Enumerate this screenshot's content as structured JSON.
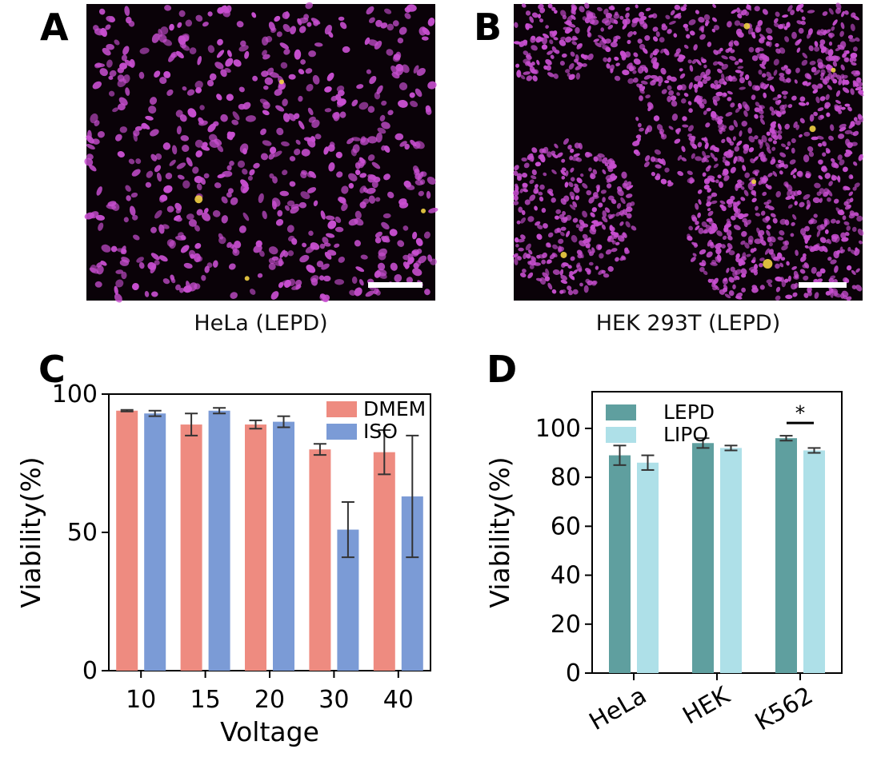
{
  "panel_a": {
    "letter": "A",
    "caption": "HeLa (LEPD)",
    "cell_color": "#c84fd0",
    "background_color": "#0a0208",
    "highlight_color": "#f2d245"
  },
  "panel_b": {
    "letter": "B",
    "caption": "HEK 293T (LEPD)",
    "cell_color": "#c84fd0",
    "background_color": "#0a0208",
    "highlight_color": "#f2d245"
  },
  "chart_data": [
    {
      "panel": "C",
      "type": "bar",
      "title": "",
      "xlabel": "Voltage",
      "ylabel": "Viability(%)",
      "categories": [
        "10",
        "15",
        "20",
        "30",
        "40"
      ],
      "ylim": [
        0,
        100
      ],
      "yticks": [
        "0",
        "50",
        "100"
      ],
      "legend": "top-right",
      "grid": false,
      "series": [
        {
          "name": "DMEM",
          "color": "#ee8b80",
          "values": [
            94,
            89,
            89,
            80,
            79
          ],
          "errors": [
            0.3,
            4,
            1.5,
            2,
            8
          ]
        },
        {
          "name": "ISO",
          "color": "#7b9bd6",
          "values": [
            93,
            94,
            90,
            51,
            63
          ],
          "errors": [
            1,
            1,
            2,
            10,
            22
          ]
        }
      ]
    },
    {
      "panel": "D",
      "type": "bar",
      "title": "",
      "xlabel": "",
      "ylabel": "Viability(%)",
      "categories": [
        "HeLa",
        "HEK",
        "K562"
      ],
      "ylim": [
        0,
        115
      ],
      "yticks": [
        "0",
        "20",
        "40",
        "60",
        "80",
        "100"
      ],
      "legend": "top-left",
      "grid": false,
      "annotation": "*",
      "series": [
        {
          "name": "LEPD",
          "color": "#5f9f9f",
          "values": [
            89,
            94,
            96
          ],
          "errors": [
            4,
            2,
            1
          ]
        },
        {
          "name": "LIPO",
          "color": "#aee0e8",
          "values": [
            86,
            92,
            91
          ],
          "errors": [
            3,
            1,
            1
          ]
        }
      ]
    }
  ]
}
